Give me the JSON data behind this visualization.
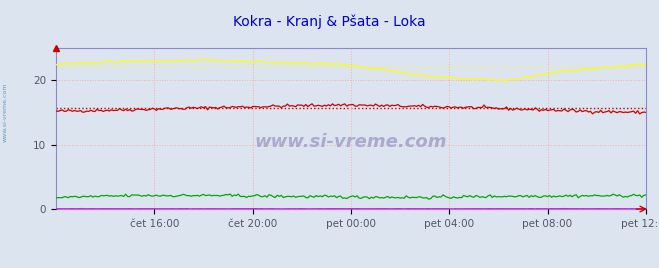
{
  "title": "Kokra - Kranj & Pšata - Loka",
  "title_color": "#0000cc",
  "fig_bg_color": "#dce4f0",
  "plot_bg_color": "#dce4f0",
  "xlim": [
    0,
    288
  ],
  "ylim": [
    0,
    25
  ],
  "yticks": [
    0,
    10,
    20
  ],
  "xtick_labels": [
    "čet 16:00",
    "čet 20:00",
    "pet 00:00",
    "pet 04:00",
    "pet 08:00",
    "pet 12:00"
  ],
  "xtick_positions": [
    48,
    96,
    144,
    192,
    240,
    288
  ],
  "grid_color": "#ffaaaa",
  "grid_style": ":",
  "watermark": "www.si-vreme.com",
  "kokra_temp_color": "#cc0000",
  "kokra_pretok_color": "#00aa00",
  "psata_temp_color": "#ffff00",
  "psata_pretok_color": "#ff00ff",
  "legend_text_color": "#44aacc",
  "axis_color": "#8888cc",
  "tick_color": "#555566",
  "tick_fontsize": 7.5,
  "title_fontsize": 10,
  "watermark_color": "#aaaacc",
  "side_label_color": "#6699bb"
}
